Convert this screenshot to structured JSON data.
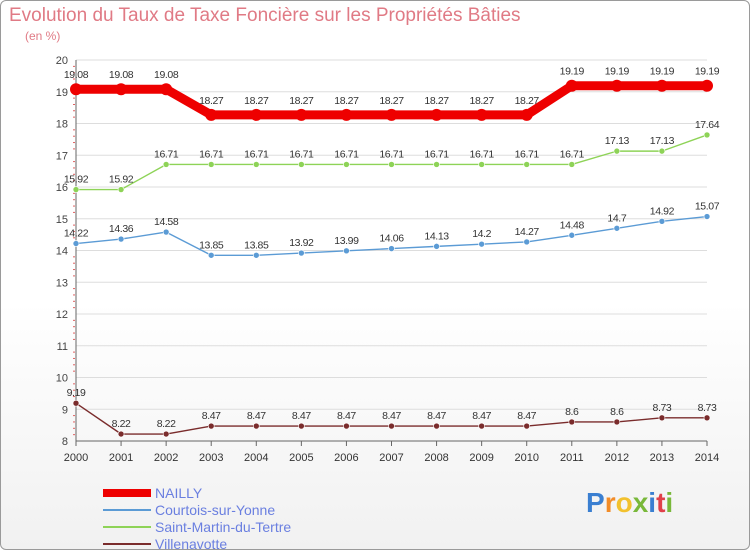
{
  "chart_data": {
    "type": "line",
    "title": "Evolution du Taux de Taxe Foncière sur les Propriétés Bâties",
    "subtitle": "(en %)",
    "xlabel": "",
    "ylabel": "",
    "x": [
      "2000",
      "2001",
      "2002",
      "2003",
      "2004",
      "2005",
      "2006",
      "2007",
      "2008",
      "2009",
      "2010",
      "2011",
      "2012",
      "2013",
      "2014"
    ],
    "ylim": [
      8,
      20
    ],
    "yticks": [
      "8",
      "9",
      "10",
      "11",
      "12",
      "13",
      "14",
      "15",
      "16",
      "17",
      "18",
      "19",
      "20"
    ],
    "series": [
      {
        "name": "NAILLY",
        "color": "#ee0000",
        "values": [
          19.08,
          19.08,
          19.08,
          18.27,
          18.27,
          18.27,
          18.27,
          18.27,
          18.27,
          18.27,
          18.27,
          19.19,
          19.19,
          19.19,
          19.19
        ],
        "labels": [
          "19.08",
          "19.08",
          "19.08",
          "18.27",
          "18.27",
          "18.27",
          "18.27",
          "18.27",
          "18.27",
          "18.27",
          "18.27",
          "19.19",
          "19.19",
          "19.19",
          "19.19"
        ]
      },
      {
        "name": "Courtois-sur-Yonne",
        "color": "#5b9bd5",
        "values": [
          14.22,
          14.36,
          14.58,
          13.85,
          13.85,
          13.92,
          13.99,
          14.06,
          14.13,
          14.2,
          14.27,
          14.48,
          14.7,
          14.92,
          15.07
        ],
        "labels": [
          "14.22",
          "14.36",
          "14.58",
          "13.85",
          "13.85",
          "13.92",
          "13.99",
          "14.06",
          "14.13",
          "14.2",
          "14.27",
          "14.48",
          "14.7",
          "14.92",
          "15.07"
        ]
      },
      {
        "name": "Saint-Martin-du-Tertre",
        "color": "#8ed357",
        "values": [
          15.92,
          15.92,
          16.71,
          16.71,
          16.71,
          16.71,
          16.71,
          16.71,
          16.71,
          16.71,
          16.71,
          16.71,
          17.13,
          17.13,
          17.64
        ],
        "labels": [
          "15.92",
          "15.92",
          "16.71",
          "16.71",
          "16.71",
          "16.71",
          "16.71",
          "16.71",
          "16.71",
          "16.71",
          "16.71",
          "16.71",
          "17.13",
          "17.13",
          "17.64"
        ]
      },
      {
        "name": "Villenavotte",
        "color": "#7a2c2c",
        "values": [
          9.19,
          8.22,
          8.22,
          8.47,
          8.47,
          8.47,
          8.47,
          8.47,
          8.47,
          8.47,
          8.47,
          8.6,
          8.6,
          8.73,
          8.73
        ],
        "labels": [
          "9.19",
          "8.22",
          "8.22",
          "8.47",
          "8.47",
          "8.47",
          "8.47",
          "8.47",
          "8.47",
          "8.47",
          "8.47",
          "8.6",
          "8.6",
          "8.73",
          "8.73"
        ]
      }
    ]
  },
  "legend": [
    {
      "label": "NAILLY",
      "color": "#ee0000"
    },
    {
      "label": "Courtois-sur-Yonne",
      "color": "#5b9bd5"
    },
    {
      "label": "Saint-Martin-du-Tertre",
      "color": "#8ed357"
    },
    {
      "label": "Villenavotte",
      "color": "#7a2c2c"
    }
  ],
  "logo": {
    "text": "Proxiti",
    "letters": [
      "P",
      "r",
      "o",
      "x",
      "i",
      "t",
      "i"
    ],
    "colors": [
      "#3a7fd1",
      "#f28c28",
      "#f2c12e",
      "#79b83a",
      "#3a7fd1",
      "#e0404a",
      "#79b83a"
    ]
  }
}
